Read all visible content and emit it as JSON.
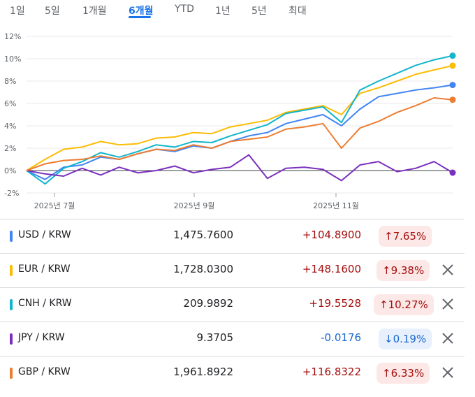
{
  "tabs": [
    {
      "label": "1일",
      "active": false
    },
    {
      "label": "5일",
      "active": false
    },
    {
      "label": "1개월",
      "active": false
    },
    {
      "label": "6개월",
      "active": true
    },
    {
      "label": "YTD",
      "active": false
    },
    {
      "label": "1년",
      "active": false
    },
    {
      "label": "5년",
      "active": false
    },
    {
      "label": "최대",
      "active": false
    }
  ],
  "chart_data": {
    "type": "line",
    "y_ticks": [
      "12%",
      "10%",
      "8%",
      "6%",
      "4%",
      "2%",
      "0%",
      "-2%"
    ],
    "ylim": [
      -2,
      12
    ],
    "x_ticks": [
      "2025년 7월",
      "2025년 9월",
      "2025년 11월"
    ],
    "grid": true,
    "series": [
      {
        "name": "USD / KRW",
        "color": "#4285f4",
        "values": [
          0,
          -0.8,
          0.3,
          0.5,
          1.2,
          1.0,
          1.5,
          1.9,
          1.7,
          2.2,
          2.0,
          2.6,
          3.1,
          3.4,
          4.2,
          4.6,
          5.0,
          4.0,
          5.5,
          6.6,
          6.9,
          7.2,
          7.4,
          7.65
        ]
      },
      {
        "name": "EUR / KRW",
        "color": "#fbbc04",
        "values": [
          0,
          1.0,
          1.9,
          2.1,
          2.6,
          2.3,
          2.4,
          2.9,
          3.0,
          3.4,
          3.3,
          3.9,
          4.2,
          4.5,
          5.2,
          5.5,
          5.8,
          5.0,
          6.9,
          7.4,
          8.0,
          8.6,
          9.0,
          9.38
        ]
      },
      {
        "name": "CNH / KRW",
        "color": "#12b5cb",
        "values": [
          0,
          -1.2,
          0.2,
          0.8,
          1.6,
          1.2,
          1.7,
          2.3,
          2.1,
          2.6,
          2.5,
          3.1,
          3.6,
          4.1,
          5.1,
          5.4,
          5.7,
          4.3,
          7.2,
          8.0,
          8.7,
          9.4,
          9.9,
          10.27
        ]
      },
      {
        "name": "JPY / KRW",
        "color": "#7b2fbe",
        "values": [
          0,
          -0.3,
          -0.5,
          0.2,
          -0.4,
          0.3,
          -0.2,
          0.0,
          0.4,
          -0.2,
          0.1,
          0.3,
          1.4,
          -0.7,
          0.2,
          0.3,
          0.1,
          -0.9,
          0.5,
          0.8,
          -0.1,
          0.2,
          0.8,
          -0.19
        ]
      },
      {
        "name": "GBP / KRW",
        "color": "#ed7d31",
        "values": [
          0,
          0.6,
          0.9,
          1.0,
          1.3,
          1.0,
          1.5,
          1.9,
          1.8,
          2.3,
          2.0,
          2.6,
          2.8,
          3.0,
          3.7,
          3.9,
          4.2,
          2.0,
          3.8,
          4.4,
          5.2,
          5.8,
          6.5,
          6.33
        ]
      }
    ]
  },
  "rows": [
    {
      "pair": "USD / KRW",
      "color": "#4285f4",
      "price": "1,475.7600",
      "change": "+104.8900",
      "dir": "up",
      "arrow": "↑",
      "percent": "7.65%",
      "removable": false
    },
    {
      "pair": "EUR / KRW",
      "color": "#fbbc04",
      "price": "1,728.0300",
      "change": "+148.1600",
      "dir": "up",
      "arrow": "↑",
      "percent": "9.38%",
      "removable": true
    },
    {
      "pair": "CNH / KRW",
      "color": "#12b5cb",
      "price": "209.9892",
      "change": "+19.5528",
      "dir": "up",
      "arrow": "↑",
      "percent": "10.27%",
      "removable": true
    },
    {
      "pair": "JPY / KRW",
      "color": "#7b2fbe",
      "price": "9.3705",
      "change": "-0.0176",
      "dir": "down",
      "arrow": "↓",
      "percent": "0.19%",
      "removable": true
    },
    {
      "pair": "GBP / KRW",
      "color": "#ed7d31",
      "price": "1,961.8922",
      "change": "+116.8322",
      "dir": "up",
      "arrow": "↑",
      "percent": "6.33%",
      "removable": true
    }
  ],
  "icons": {
    "remove": "close-icon",
    "up": "arrow-up-icon",
    "down": "arrow-down-icon"
  }
}
